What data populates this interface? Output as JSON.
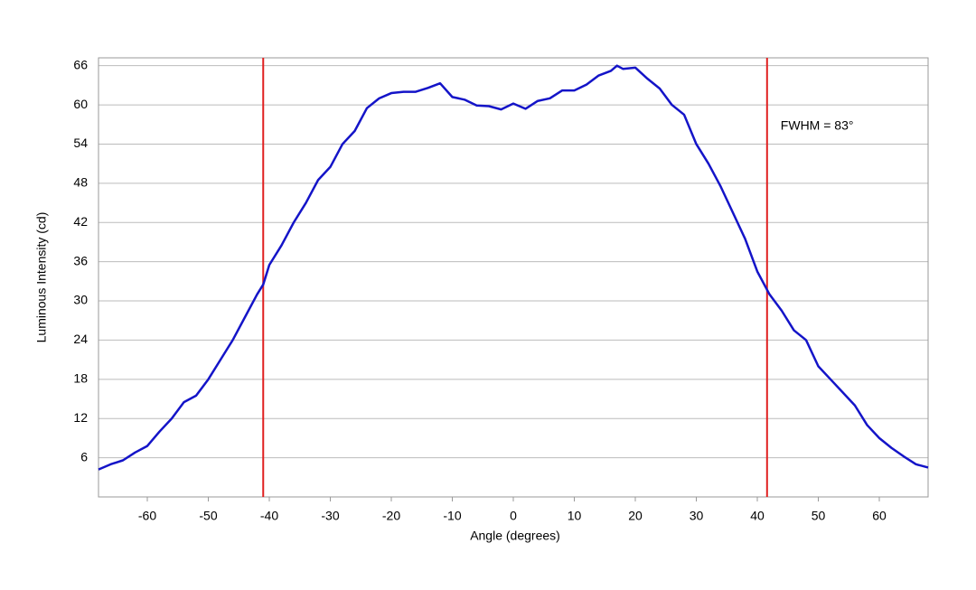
{
  "chart_data": {
    "type": "line",
    "xlabel": "Angle (degrees)",
    "ylabel": "Luminous Intensity (cd)",
    "annotation": "FWHM = 83°",
    "x": [
      -68,
      -66,
      -64,
      -62,
      -60,
      -58,
      -56,
      -54,
      -52,
      -50,
      -48,
      -46,
      -44,
      -42,
      -41,
      -40,
      -38,
      -36,
      -34,
      -32,
      -30,
      -28,
      -26,
      -24,
      -22,
      -20,
      -18,
      -16,
      -14,
      -12,
      -10,
      -8,
      -6,
      -4,
      -2,
      0,
      2,
      4,
      6,
      8,
      10,
      12,
      14,
      16,
      17,
      18,
      20,
      22,
      24,
      26,
      28,
      30,
      32,
      34,
      36,
      38,
      40,
      42,
      44,
      46,
      48,
      50,
      52,
      54,
      56,
      58,
      60,
      62,
      64,
      66,
      68
    ],
    "series": [
      {
        "name": "Luminous Intensity",
        "color": "#1414c8",
        "values": [
          4.2,
          5,
          5.6,
          6.8,
          7.8,
          10,
          12,
          14.5,
          15.5,
          18,
          21,
          24,
          27.5,
          31,
          32.5,
          35.5,
          38.5,
          42,
          45,
          48.5,
          50.5,
          54,
          56,
          59.5,
          61,
          61.8,
          62,
          62,
          62.6,
          63.3,
          61.2,
          60.8,
          59.9,
          59.8,
          59.3,
          60.2,
          59.4,
          60.6,
          61,
          62.2,
          62.2,
          63.1,
          64.5,
          65.2,
          66,
          65.5,
          65.7,
          64,
          62.5,
          60,
          58.5,
          54,
          51,
          47.5,
          43.5,
          39.5,
          34.5,
          31,
          28.5,
          25.5,
          24,
          20,
          18,
          16,
          14,
          11,
          9,
          7.5,
          6.2,
          5,
          4.5
        ]
      }
    ],
    "vlines": [
      -41,
      41.6
    ],
    "vline_color": "#e02020",
    "xlim": [
      -68,
      68
    ],
    "ylim": [
      0,
      67.2
    ],
    "xticks": [
      -60,
      -50,
      -40,
      -30,
      -20,
      -10,
      0,
      10,
      20,
      30,
      40,
      50,
      60
    ],
    "yticks": [
      6,
      12,
      18,
      24,
      30,
      36,
      42,
      48,
      54,
      60,
      66
    ],
    "grid": true
  }
}
